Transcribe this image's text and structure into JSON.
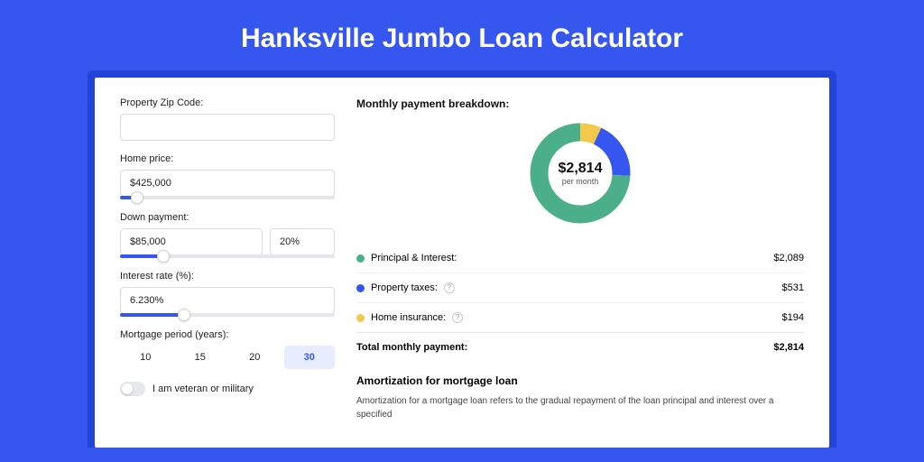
{
  "page_title": "Hanksville Jumbo Loan Calculator",
  "colors": {
    "page_bg": "#3557f0",
    "outer_card_bg": "#2245d8",
    "accent": "#3557f0",
    "pi": "#4bb08a",
    "tax": "#3557f0",
    "ins": "#f2c94c"
  },
  "form": {
    "zip": {
      "label": "Property Zip Code:",
      "value": ""
    },
    "home_price": {
      "label": "Home price:",
      "value": "$425,000",
      "slider_pct": 8
    },
    "down_payment": {
      "label": "Down payment:",
      "value": "$85,000",
      "pct_value": "20%",
      "slider_pct": 20
    },
    "interest": {
      "label": "Interest rate (%):",
      "value": "6.230%",
      "slider_pct": 30
    },
    "period": {
      "label": "Mortgage period (years):",
      "options": [
        "10",
        "15",
        "20",
        "30"
      ],
      "selected": "30"
    },
    "veteran": {
      "label": "I am veteran or military",
      "checked": false
    }
  },
  "breakdown": {
    "title": "Monthly payment breakdown:",
    "donut": {
      "amount": "$2,814",
      "sub": "per month",
      "slices": [
        {
          "key": "pi",
          "color": "#4bb08a",
          "pct": 74.2
        },
        {
          "key": "tax",
          "color": "#3557f0",
          "pct": 18.9
        },
        {
          "key": "ins",
          "color": "#f2c94c",
          "pct": 6.9
        }
      ]
    },
    "rows": [
      {
        "label": "Principal & Interest:",
        "value": "$2,089",
        "color": "#4bb08a",
        "info": false
      },
      {
        "label": "Property taxes:",
        "value": "$531",
        "color": "#3557f0",
        "info": true
      },
      {
        "label": "Home insurance:",
        "value": "$194",
        "color": "#f2c94c",
        "info": true
      }
    ],
    "total": {
      "label": "Total monthly payment:",
      "value": "$2,814"
    }
  },
  "amortization": {
    "title": "Amortization for mortgage loan",
    "text": "Amortization for a mortgage loan refers to the gradual repayment of the loan principal and interest over a specified"
  }
}
